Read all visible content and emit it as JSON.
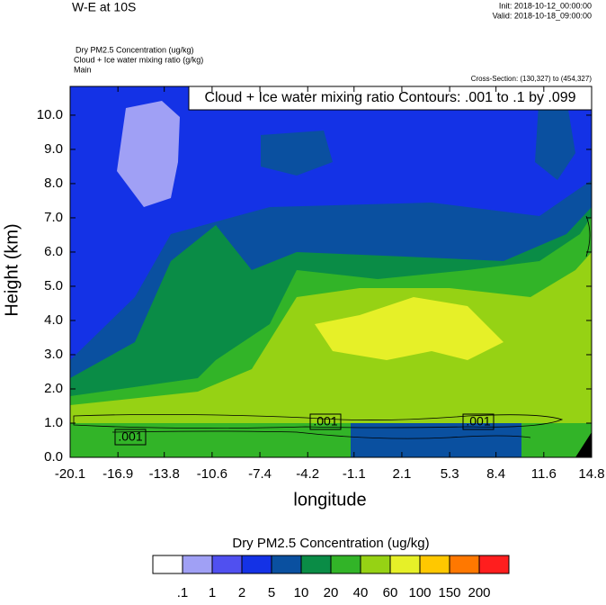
{
  "header": {
    "title": "W-E at 10S",
    "init": "Init: 2018-10-12_00:00:00",
    "valid": "Valid: 2018-10-18_09:00:00",
    "field1": "Dry PM2.5 Concentration   (ug/kg)",
    "field2": "Cloud + Ice water mixing ratio   (g/kg)",
    "domain": "Main",
    "cross_section": "Cross-Section: (130,327) to (454,327)"
  },
  "chart_data": {
    "type": "contour",
    "contour_note": "Cloud + Ice water mixing ratio Contours: .001 to .1 by .099",
    "contour_labels": [
      ".001",
      ".001",
      ".001"
    ],
    "x_label": "longitude",
    "y_label": "Height (km)",
    "xlim": [
      -20.1,
      14.8
    ],
    "xticks": [
      -20.1,
      -16.9,
      -13.8,
      -10.6,
      -7.4,
      -4.2,
      -1.1,
      2.1,
      5.3,
      8.4,
      11.6,
      14.8
    ],
    "ylim": [
      0,
      10.84
    ],
    "yticks": [
      {
        "value": 0,
        "label": "0.0"
      },
      {
        "value": 1,
        "label": "1.0"
      },
      {
        "value": 2,
        "label": "2.0"
      },
      {
        "value": 3,
        "label": "3.0"
      },
      {
        "value": 4,
        "label": "4.0"
      },
      {
        "value": 5,
        "label": "5.0"
      },
      {
        "value": 6,
        "label": "6.0"
      },
      {
        "value": 7,
        "label": "7.0"
      },
      {
        "value": 8,
        "label": "8.0"
      },
      {
        "value": 9,
        "label": "9.0"
      },
      {
        "value": 10,
        "label": "10.0"
      }
    ],
    "colorbar": {
      "title": "Dry PM2.5 Concentration  (ug/kg)",
      "levels": [
        {
          "value": 0.1,
          "label": ".1"
        },
        1,
        2,
        5,
        10,
        20,
        40,
        60,
        100,
        150,
        200
      ],
      "colors": [
        "#ffffff",
        "#a0a0f5",
        "#5050f0",
        "#1432e6",
        "#0a50a0",
        "#0a8c46",
        "#32b428",
        "#96d214",
        "#e6f028",
        "#ffc800",
        "#ff7800",
        "#ff1e1e"
      ]
    }
  }
}
